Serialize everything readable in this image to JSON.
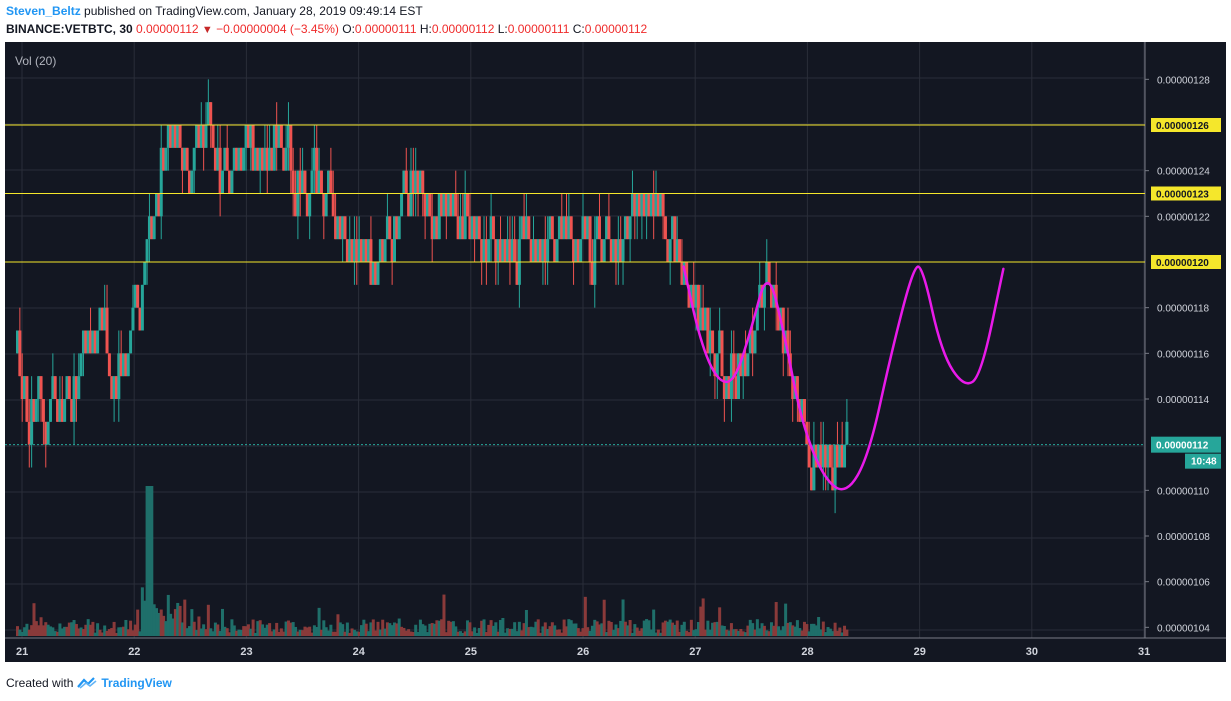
{
  "header": {
    "author": "Steven_Beltz",
    "published": "published on TradingView.com, January 28, 2019 09:49:14 EST",
    "symbol": "BINANCE:VETBTC, 30",
    "last": "0.00000112",
    "change": "−0.00000004 (−3.45%)",
    "o_label": "O:",
    "o": "0.00000111",
    "h_label": "H:",
    "h": "0.00000112",
    "l_label": "L:",
    "l": "0.00000111",
    "c_label": "C:",
    "c": "0.00000112"
  },
  "indicator_label": "Vol (20)",
  "footer": {
    "created_with": "Created with",
    "brand": "TradingView"
  },
  "colors": {
    "up": "#26a69a",
    "down": "#ef5350",
    "level": "#f5e72b",
    "pattern": "#e91ae9",
    "bg": "#131722",
    "grid": "#2a2e39"
  },
  "chart_data": {
    "type": "candlestick",
    "x_ticks": [
      "21",
      "22",
      "23",
      "24",
      "25",
      "26",
      "27",
      "28",
      "29",
      "30",
      "31"
    ],
    "y_ticks": [
      "0.00000128",
      "0.00000124",
      "0.00000122",
      "0.00000118",
      "0.00000116",
      "0.00000114",
      "0.00000110",
      "0.00000108",
      "0.00000106",
      "0.00000104"
    ],
    "ylim": [
      1.035e-06,
      1.29e-06
    ],
    "horizontal_levels": [
      {
        "value": "0.00000126",
        "price": 1.26e-06
      },
      {
        "value": "0.00000123",
        "price": 1.23e-06
      },
      {
        "value": "0.00000120",
        "price": 1.2e-06
      }
    ],
    "last_price": {
      "value": "0.00000112",
      "price": 1.12e-06
    },
    "countdown": "10:48",
    "price_path": [
      [
        21.0,
        1.155
      ],
      [
        21.1,
        1.13
      ],
      [
        21.3,
        1.14
      ],
      [
        21.5,
        1.145
      ],
      [
        21.6,
        1.16
      ],
      [
        21.7,
        1.175
      ],
      [
        21.8,
        1.16
      ],
      [
        21.9,
        1.15
      ],
      [
        22.0,
        1.17
      ],
      [
        22.1,
        1.18
      ],
      [
        22.2,
        1.22
      ],
      [
        22.3,
        1.245
      ],
      [
        22.4,
        1.26
      ],
      [
        22.5,
        1.24
      ],
      [
        22.6,
        1.25
      ],
      [
        22.7,
        1.26
      ],
      [
        22.8,
        1.24
      ],
      [
        22.9,
        1.23
      ],
      [
        23.0,
        1.245
      ],
      [
        23.1,
        1.24
      ],
      [
        23.3,
        1.255
      ],
      [
        23.5,
        1.235
      ],
      [
        23.6,
        1.23
      ],
      [
        23.8,
        1.23
      ],
      [
        23.9,
        1.21
      ],
      [
        24.0,
        1.205
      ],
      [
        24.2,
        1.195
      ],
      [
        24.3,
        1.21
      ],
      [
        24.5,
        1.235
      ],
      [
        24.7,
        1.225
      ],
      [
        24.9,
        1.225
      ],
      [
        25.1,
        1.215
      ],
      [
        25.3,
        1.21
      ],
      [
        25.5,
        1.205
      ],
      [
        25.7,
        1.205
      ],
      [
        25.9,
        1.21
      ],
      [
        26.1,
        1.205
      ],
      [
        26.3,
        1.205
      ],
      [
        26.5,
        1.22
      ],
      [
        26.7,
        1.225
      ],
      [
        26.8,
        1.205
      ],
      [
        26.9,
        1.2
      ],
      [
        27.0,
        1.185
      ],
      [
        27.1,
        1.17
      ],
      [
        27.2,
        1.16
      ],
      [
        27.4,
        1.15
      ],
      [
        27.5,
        1.16
      ],
      [
        27.6,
        1.18
      ],
      [
        27.7,
        1.195
      ],
      [
        27.8,
        1.17
      ],
      [
        27.9,
        1.15
      ],
      [
        28.0,
        1.125
      ],
      [
        28.1,
        1.115
      ],
      [
        28.2,
        1.11
      ],
      [
        28.3,
        1.115
      ],
      [
        28.4,
        1.12
      ]
    ],
    "pattern_path": [
      [
        26.95,
        1.198
      ],
      [
        27.1,
        1.165
      ],
      [
        27.25,
        1.148
      ],
      [
        27.4,
        1.147
      ],
      [
        27.55,
        1.17
      ],
      [
        27.7,
        1.198
      ],
      [
        27.85,
        1.168
      ],
      [
        28.0,
        1.13
      ],
      [
        28.2,
        1.105
      ],
      [
        28.4,
        1.098
      ],
      [
        28.6,
        1.115
      ],
      [
        28.8,
        1.16
      ],
      [
        29.0,
        1.198
      ],
      [
        29.08,
        1.198
      ],
      [
        29.25,
        1.16
      ],
      [
        29.45,
        1.145
      ],
      [
        29.6,
        1.15
      ],
      [
        29.8,
        1.197
      ]
    ],
    "volume_bars_note": "relative heights only"
  }
}
